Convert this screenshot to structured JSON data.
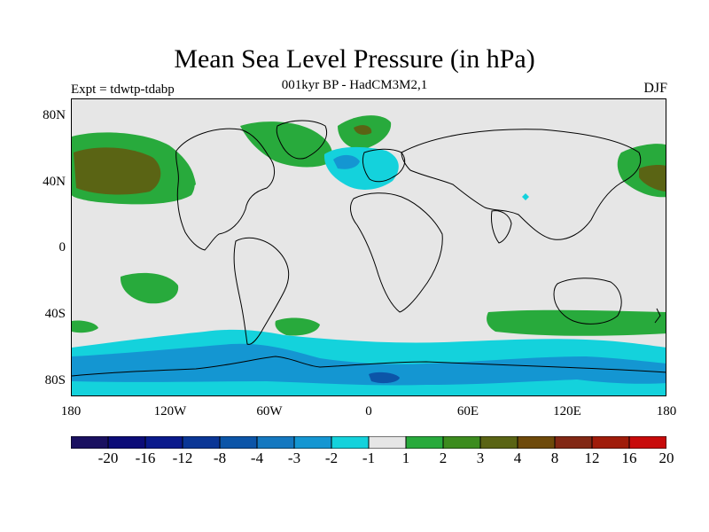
{
  "title": "Mean Sea Level Pressure (in hPa)",
  "subtitle": "001kyr BP - HadCM3M2,1",
  "left_label": "Expt = tdwtp-tdabp",
  "right_label": "DJF",
  "axes": {
    "y_ticks": [
      "80N",
      "40N",
      "0",
      "40S",
      "80S"
    ],
    "x_ticks": [
      "180",
      "120W",
      "60W",
      "0",
      "60E",
      "120E",
      "180"
    ]
  },
  "legend": {
    "labels": [
      "-20",
      "-16",
      "-12",
      "-8",
      "-4",
      "-3",
      "-2",
      "-1",
      "1",
      "2",
      "3",
      "4",
      "8",
      "12",
      "16",
      "20"
    ],
    "colors": [
      "#1a1060",
      "#0c0c78",
      "#0a1a8c",
      "#0a3696",
      "#0c55a8",
      "#1478c0",
      "#1496d2",
      "#14d2dc",
      "#e6e6e6",
      "#28aa3c",
      "#3c8c1e",
      "#5a6414",
      "#6e4a0a",
      "#822814",
      "#a01c0a",
      "#c80a0a"
    ]
  },
  "colors": {
    "background": "#e6e6e6",
    "light_blue": "#14d2dc",
    "mid_blue": "#1496d2",
    "dark_blue": "#1478c0",
    "green": "#28aa3c",
    "dark_green": "#3c8c1e",
    "olive": "#5a6414",
    "brown": "#6e4a0a"
  }
}
